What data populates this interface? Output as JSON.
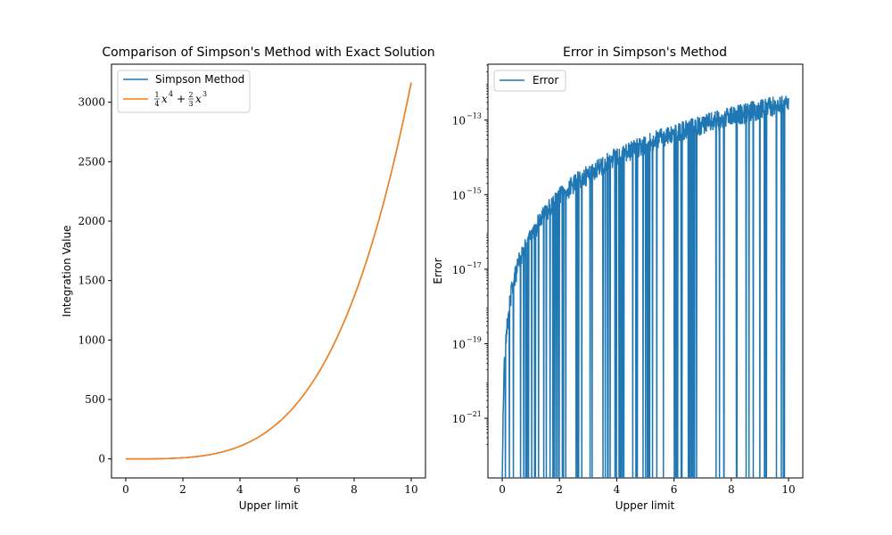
{
  "chart_data": [
    {
      "type": "line",
      "title": "Comparison of Simpson's Method with Exact Solution",
      "xlabel": "Upper limit",
      "ylabel": "Integration Value",
      "xlim": [
        -0.5,
        10.5
      ],
      "ylim": [
        -160,
        3320
      ],
      "xticks": [
        0,
        2,
        4,
        6,
        8,
        10
      ],
      "xtick_labels": [
        "0",
        "2",
        "4",
        "6",
        "8",
        "10"
      ],
      "yticks": [
        0,
        500,
        1000,
        1500,
        2000,
        2500,
        3000
      ],
      "ytick_labels": [
        "0",
        "500",
        "1000",
        "1500",
        "2000",
        "2500",
        "3000"
      ],
      "legend_position": "top-left",
      "series": [
        {
          "name": "Simpson Method",
          "color": "#1f77b4",
          "function": "x^4/4 + 2x^3/3",
          "x_range": [
            0,
            10
          ]
        },
        {
          "name": "1/4 x^4 + 2/3 x^3",
          "legend_parts": {
            "f1n": "1",
            "f1d": "4",
            "v1": "x",
            "e1": "4",
            "plus": "+",
            "f2n": "2",
            "f2d": "3",
            "v2": "x",
            "e2": "3"
          },
          "color": "#ff7f0e",
          "function": "x^4/4 + 2x^3/3",
          "x_range": [
            0,
            10
          ]
        }
      ]
    },
    {
      "type": "line",
      "title": "Error in Simpson's Method",
      "xlabel": "Upper limit",
      "ylabel": "Error",
      "yscale": "log",
      "xlim": [
        -0.5,
        10.5
      ],
      "ylim_log10": [
        -22.6,
        -11.5
      ],
      "xticks": [
        0,
        2,
        4,
        6,
        8,
        10
      ],
      "xtick_labels": [
        "0",
        "2",
        "4",
        "6",
        "8",
        "10"
      ],
      "yticks_log10": [
        -21,
        -19,
        -17,
        -15,
        -13
      ],
      "ytick_labels": [
        {
          "base": "10",
          "exp": "−21"
        },
        {
          "base": "10",
          "exp": "−19"
        },
        {
          "base": "10",
          "exp": "−17"
        },
        {
          "base": "10",
          "exp": "−15"
        },
        {
          "base": "10",
          "exp": "−13"
        }
      ],
      "legend_position": "top-left",
      "series": [
        {
          "name": "Error",
          "color": "#1f77b4",
          "envelope": "approx |error| ~ 1e-16 * (x^4/4 + 2x^3/3)",
          "x_range": [
            0,
            10
          ]
        }
      ]
    }
  ]
}
